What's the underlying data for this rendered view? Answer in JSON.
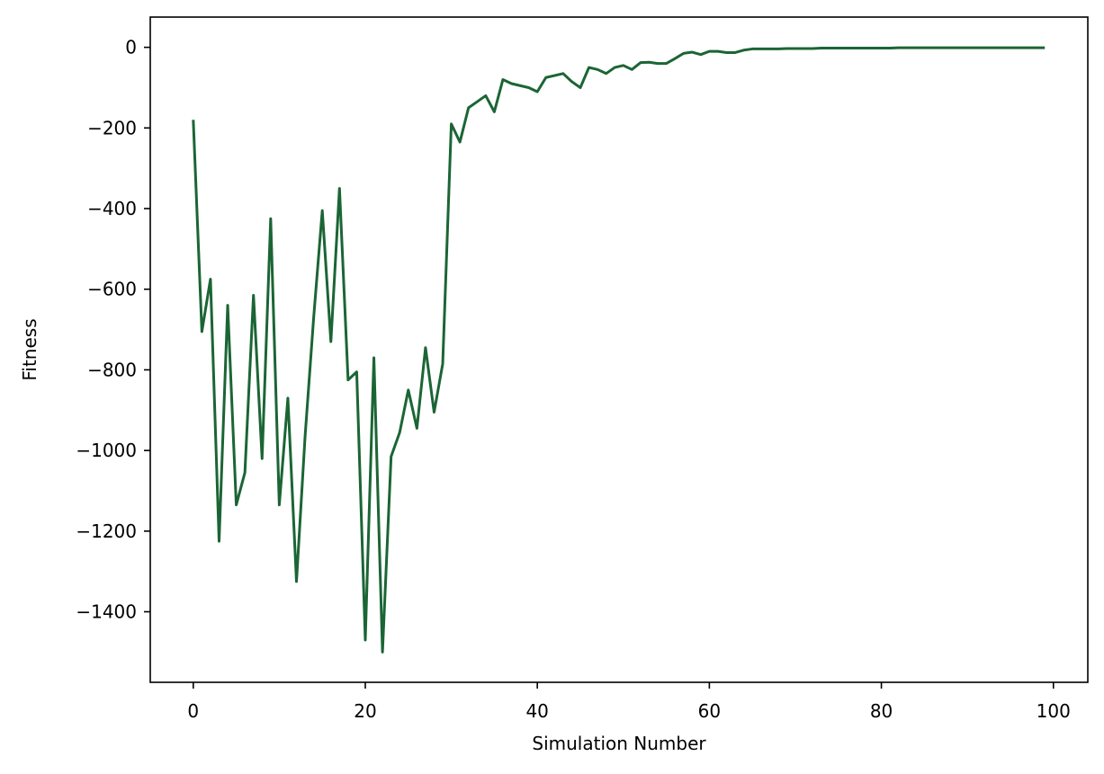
{
  "chart_data": {
    "type": "line",
    "title": "",
    "xlabel": "Simulation Number",
    "ylabel": "Fitness",
    "xlim": [
      -5,
      104
    ],
    "ylim": [
      -1575,
      75
    ],
    "xticks": [
      0,
      20,
      40,
      60,
      80,
      100
    ],
    "xtick_labels": [
      "0",
      "20",
      "40",
      "60",
      "80",
      "100"
    ],
    "yticks": [
      0,
      -200,
      -400,
      -600,
      -800,
      -1000,
      -1200,
      -1400
    ],
    "ytick_labels": [
      "0",
      "−200",
      "−400",
      "−600",
      "−800",
      "−1000",
      "−1200",
      "−1400"
    ],
    "grid": false,
    "line_color": "#1b6535",
    "series": [
      {
        "x": [
          0,
          1,
          2,
          3,
          4,
          5,
          6,
          7,
          8,
          9,
          10,
          11,
          12,
          13,
          14,
          15,
          16,
          17,
          18,
          19,
          20,
          21,
          22,
          23,
          24,
          25,
          26,
          27,
          28,
          29,
          30,
          31,
          32,
          33,
          34,
          35,
          36,
          37,
          38,
          39,
          40,
          41,
          42,
          43,
          44,
          45,
          46,
          47,
          48,
          49,
          50,
          51,
          52,
          53,
          54,
          55,
          56,
          57,
          58,
          59,
          60,
          61,
          62,
          63,
          64,
          65,
          66,
          67,
          68,
          69,
          70,
          71,
          72,
          73,
          74,
          75,
          76,
          77,
          78,
          79,
          80,
          81,
          82,
          83,
          84,
          85,
          86,
          87,
          88,
          89,
          90,
          91,
          92,
          93,
          94,
          95,
          96,
          97,
          98,
          99
        ],
        "values": [
          -180,
          -705,
          -575,
          -1225,
          -640,
          -1135,
          -1055,
          -615,
          -1020,
          -425,
          -1135,
          -870,
          -1325,
          -965,
          -670,
          -405,
          -730,
          -350,
          -825,
          -805,
          -1470,
          -770,
          -1500,
          -1015,
          -955,
          -850,
          -945,
          -745,
          -905,
          -785,
          -190,
          -235,
          -150,
          -135,
          -120,
          -160,
          -80,
          -90,
          -95,
          -100,
          -110,
          -75,
          -70,
          -65,
          -85,
          -100,
          -50,
          -55,
          -65,
          -50,
          -45,
          -55,
          -38,
          -37,
          -40,
          -40,
          -28,
          -15,
          -12,
          -18,
          -10,
          -10,
          -13,
          -13,
          -7,
          -4,
          -4,
          -4,
          -4,
          -3,
          -3,
          -3,
          -3,
          -2,
          -2,
          -2,
          -2,
          -2,
          -2,
          -2,
          -2,
          -2,
          -1,
          -1,
          -1,
          -1,
          -1,
          -1,
          -1,
          -1,
          -1,
          -1,
          -1,
          -1,
          -1,
          -1,
          -1,
          -1,
          -1,
          -1
        ]
      }
    ]
  }
}
